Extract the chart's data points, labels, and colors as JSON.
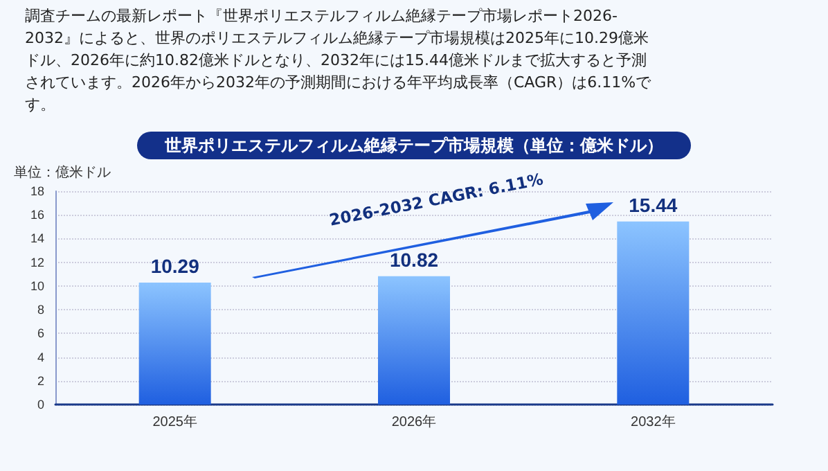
{
  "chart_data": {
    "type": "bar",
    "title": "世界ポリエステルフィルム絶縁テープ市場規模（単位：億米ドル）",
    "ylabel": "単位：億米ドル",
    "annotations": [
      "調査チームの最新レポート『世界ポリエステルフィルム絶縁テープ市場レポート2026-2032』によると、世界のポリエステルフィルム絶縁テープ市場規模は2025年に10.29億米ドル、2026年に約10.82億米ドルとなり、2032年には15.44億米ドルまで拡大すると予測されています。2026年から2032年の予測期間における年平均成長率（CAGR）は6.11%です。",
      "2026-2032 CAGR: 6.11%"
    ],
    "categories": [
      "2025年",
      "2026年",
      "2032年"
    ],
    "values": [
      10.29,
      10.82,
      15.44
    ],
    "color": "#1f5fe0",
    "ylim": [
      0,
      18
    ],
    "yticks": [
      0,
      2,
      4,
      6,
      8,
      10,
      12,
      14,
      16,
      18
    ],
    "grid": "y",
    "data_labels": true
  }
}
